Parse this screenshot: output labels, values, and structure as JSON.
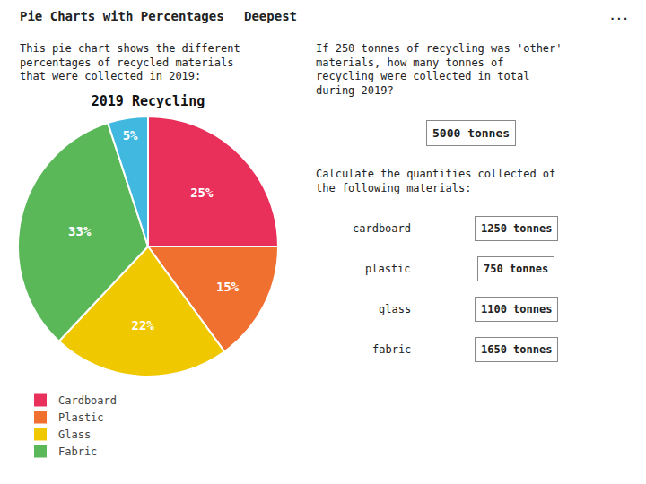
{
  "chart_data": {
    "type": "pie",
    "title": "2019 Recycling",
    "categories": [
      "Cardboard",
      "Plastic",
      "Glass",
      "Fabric",
      null
    ],
    "values": [
      25,
      15,
      22,
      33,
      5
    ],
    "value_labels": [
      "25%",
      "15%",
      "22%",
      "33%",
      "5%"
    ],
    "colors": [
      "#e8305a",
      "#f07030",
      "#f0c800",
      "#5ab858",
      "#40b8e0"
    ],
    "data_labels": true,
    "legend": "bottom",
    "annotations": [
      "Pie Charts with Percentages",
      "Deepest",
      "...",
      "This pie chart shows the different\npercentages of recycled materials\nthat were collected in 2019:",
      "If 250 tonnes of recycling was 'other'\nmaterials, how many tonnes of\nrecycling were collected in total\nduring 2019?",
      "5000 tonnes",
      "Calculate the quantities collected of\nthe following materials:",
      "cardboard",
      "1250 tonnes",
      "plastic",
      "750 tonnes",
      "glass",
      "1100 tonnes",
      "fabric",
      "1650 tonnes"
    ]
  }
}
